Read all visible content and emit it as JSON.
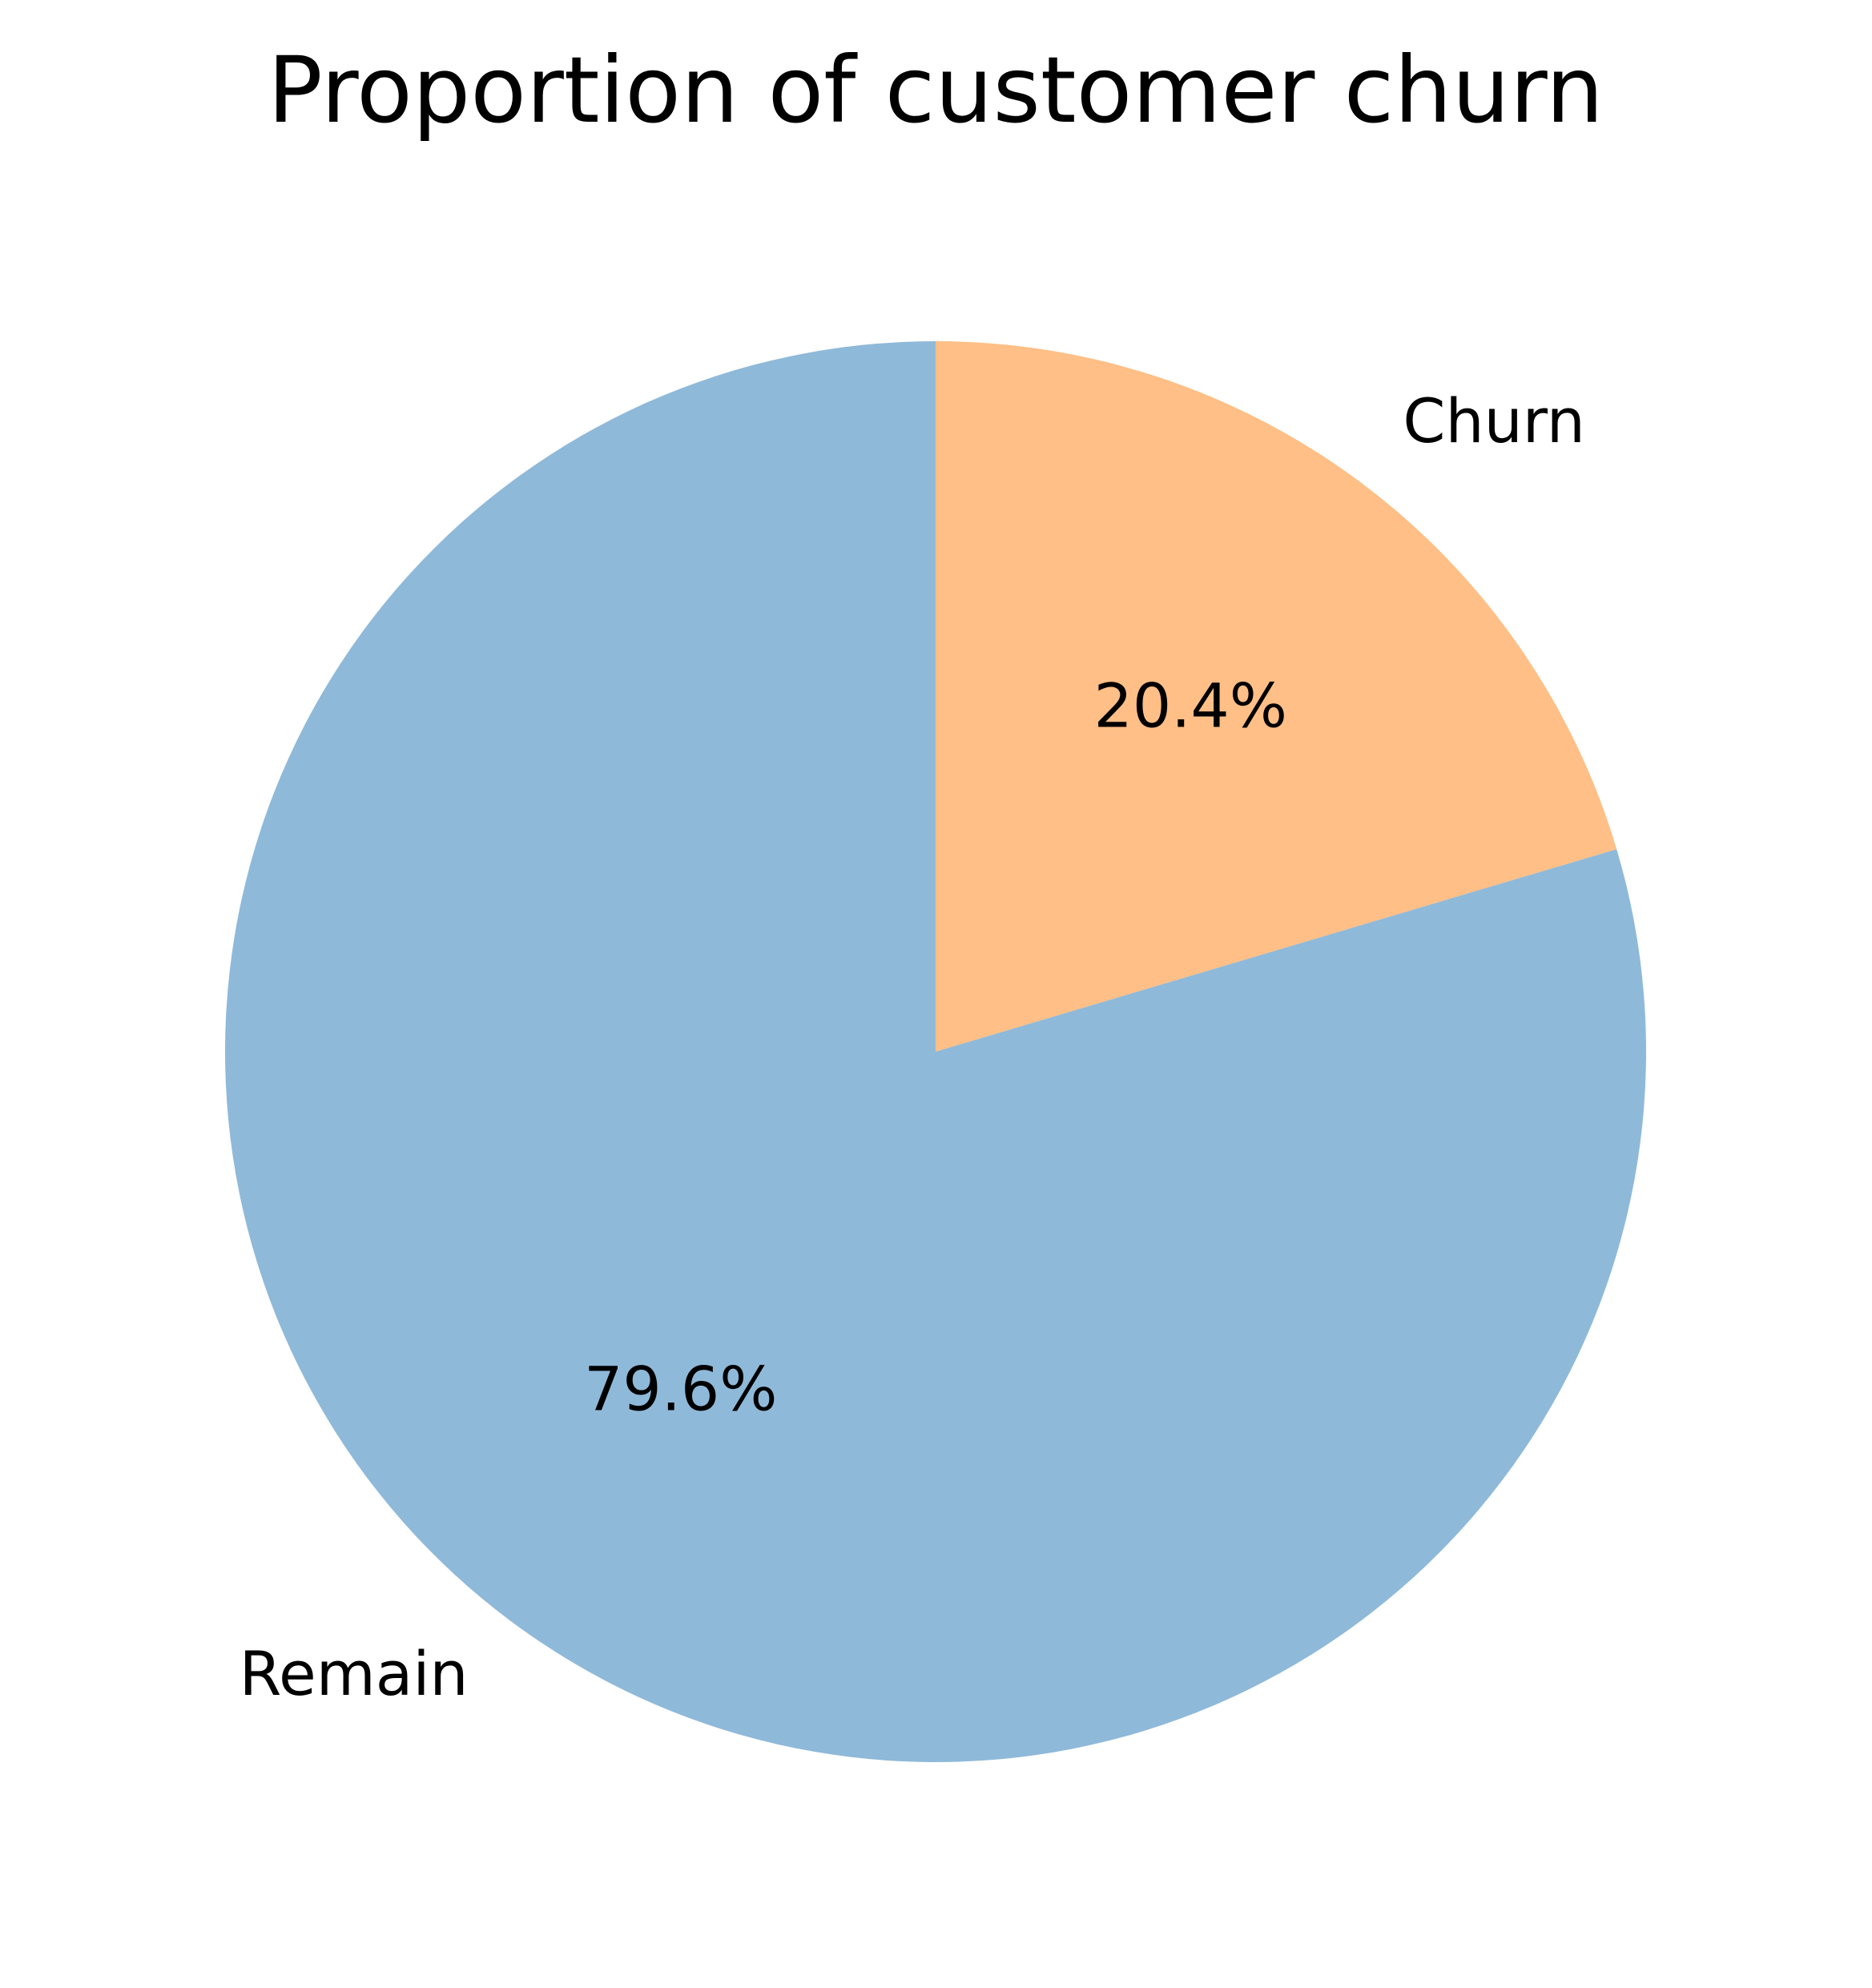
{
  "chart_data": {
    "type": "pie",
    "title": "Proportion of customer churn",
    "slices": [
      {
        "label": "Churn",
        "value": 20.4,
        "pct_label": "20.4%",
        "color": "#ffbf86"
      },
      {
        "label": "Remain",
        "value": 79.6,
        "pct_label": "79.6%",
        "color": "#8fb9d9"
      }
    ],
    "start_angle_deg": 90,
    "direction": "clockwise",
    "legend": "none"
  }
}
